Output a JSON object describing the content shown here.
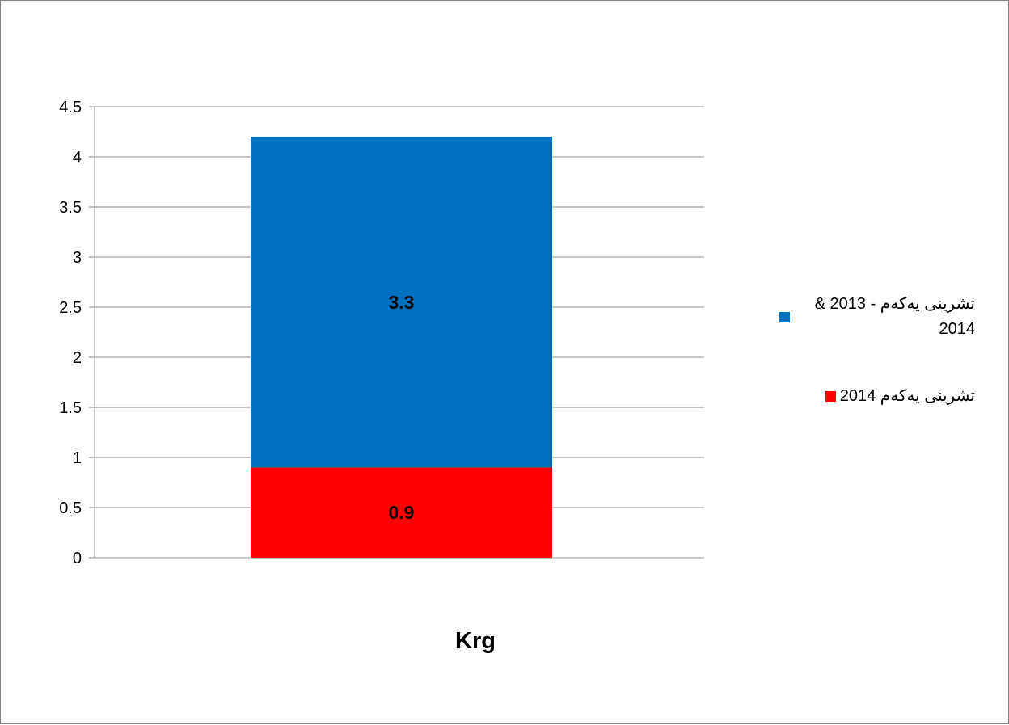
{
  "chart_data": {
    "type": "bar",
    "stacked": true,
    "categories": [
      "Krg"
    ],
    "series": [
      {
        "name": "تشرينی یەکەم 2014",
        "values": [
          0.9
        ],
        "color": "#ff0000"
      },
      {
        "name": "تشرينی یەکەم - 2013 & 2014",
        "values": [
          3.3
        ],
        "color": "#0070c0"
      }
    ],
    "ylim": [
      0,
      4.5
    ],
    "yticks": [
      "0",
      "0.5",
      "1",
      "1.5",
      "2",
      "2.5",
      "3",
      "3.5",
      "4",
      "4.5"
    ],
    "grid": true,
    "legend_position": "right",
    "data_labels": [
      "0.9",
      "3.3"
    ],
    "title": "",
    "xlabel": "",
    "ylabel": ""
  }
}
